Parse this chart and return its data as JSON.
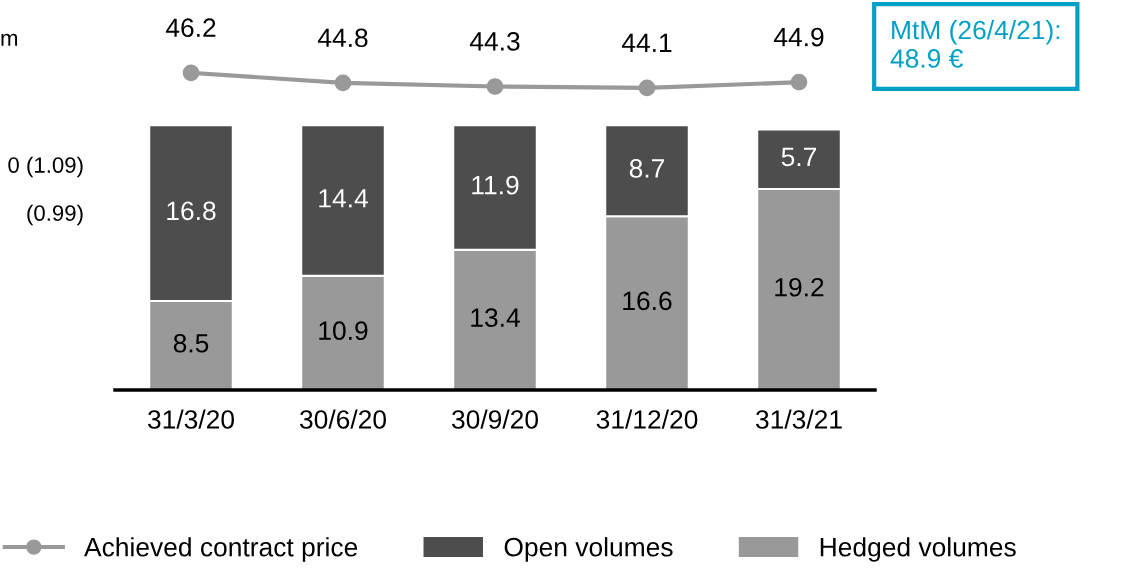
{
  "chart_data": [
    {
      "type": "line",
      "categories": [
        null,
        null,
        null,
        null,
        null
      ],
      "series": [
        {
          "name": "Achieved contract price",
          "color": "#999999",
          "values": [
            46.2,
            44.8,
            44.3,
            44.1,
            44.9
          ]
        }
      ],
      "marker": "circle",
      "data_labels": true,
      "legend": "bottom",
      "grid": false
    },
    {
      "type": "bar",
      "stacked": true,
      "categories": [
        "31/3/20",
        "30/6/20",
        "30/9/20",
        "31/12/20",
        "31/3/21"
      ],
      "series": [
        {
          "name": "Hedged volumes",
          "color": "#999999",
          "values": [
            8.5,
            10.9,
            13.4,
            16.6,
            19.2
          ]
        },
        {
          "name": "Open volumes",
          "color": "#4d4d4d",
          "values": [
            16.8,
            14.4,
            11.9,
            8.7,
            5.7
          ]
        }
      ],
      "data_labels": true,
      "legend": "bottom",
      "grid": false,
      "annotations": [
        "MtM (26/4/21):\n48.9 €",
        "m",
        "0 (1.09)",
        "(0.99)"
      ]
    }
  ]
}
